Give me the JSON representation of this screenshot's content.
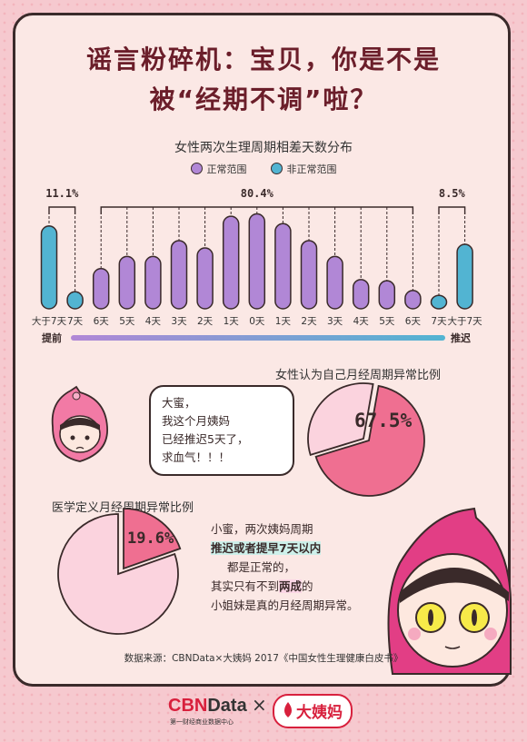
{
  "title": {
    "line1": "谣言粉碎机：宝贝，你是不是",
    "line2": "被“经期不调”啦？"
  },
  "chart_data": [
    {
      "type": "bar",
      "title": "女性两次生理周期相差天数分布",
      "categories": [
        "大于7天",
        "7天",
        "6天",
        "5天",
        "4天",
        "3天",
        "2天",
        "1天",
        "0天",
        "1天",
        "2天",
        "3天",
        "4天",
        "5天",
        "6天",
        "7天",
        "大于7天"
      ],
      "series": [
        {
          "name": "正常范围",
          "color": "#b187d6",
          "values": [
            null,
            null,
            3.3,
            4.3,
            4.3,
            5.6,
            5.0,
            7.6,
            7.8,
            7.0,
            5.6,
            4.3,
            2.4,
            2.3,
            1.5,
            null,
            null
          ]
        },
        {
          "name": "非正常范围",
          "color": "#52b4d2",
          "values": [
            6.8,
            1.4,
            null,
            null,
            null,
            null,
            null,
            null,
            null,
            null,
            null,
            null,
            null,
            null,
            null,
            1.1,
            5.3
          ]
        }
      ],
      "groups": [
        {
          "label": "11.1%",
          "from": 0,
          "to": 1
        },
        {
          "label": "80.4%",
          "from": 2,
          "to": 14
        },
        {
          "label": "8.5%",
          "from": 15,
          "to": 16
        }
      ],
      "axis_left": "提前",
      "axis_right": "推迟"
    },
    {
      "type": "pie",
      "title": "女性认为自己月经周期异常比例",
      "values": [
        67.5,
        32.5
      ],
      "label": "67.5%"
    },
    {
      "type": "pie",
      "title": "医学定义月经周期异常比例",
      "values": [
        19.6,
        80.4
      ],
      "label": "19.6%"
    }
  ],
  "bubble1": {
    "l1": "大蜜，",
    "l2": "我这个月姨妈",
    "l3": "已经推迟5天了，",
    "l4": "求血气！！！"
  },
  "bubble2": {
    "l1": "小蜜，两次姨妈周期",
    "l2": "推迟或者提早7天以内",
    "l3": "都是正常的，",
    "l4a": "其实只有不到",
    "l4b": "两成",
    "l4c": "的",
    "l5": "小姐妹是真的月经周期异常。"
  },
  "source": "数据来源：CBNData×大姨妈 2017《中国女性生理健康白皮书》",
  "footer": {
    "logo1_a": "CBN",
    "logo1_b": "Data",
    "logo1_sub": "第一财经商业数据中心",
    "times": "×",
    "logo2": "大姨妈"
  },
  "colors": {
    "normal": "#b187d6",
    "abnormal": "#52b4d2",
    "pie_dark": "#ef6f91",
    "pie_light": "#fbd3de",
    "title": "#6b1e2a"
  }
}
